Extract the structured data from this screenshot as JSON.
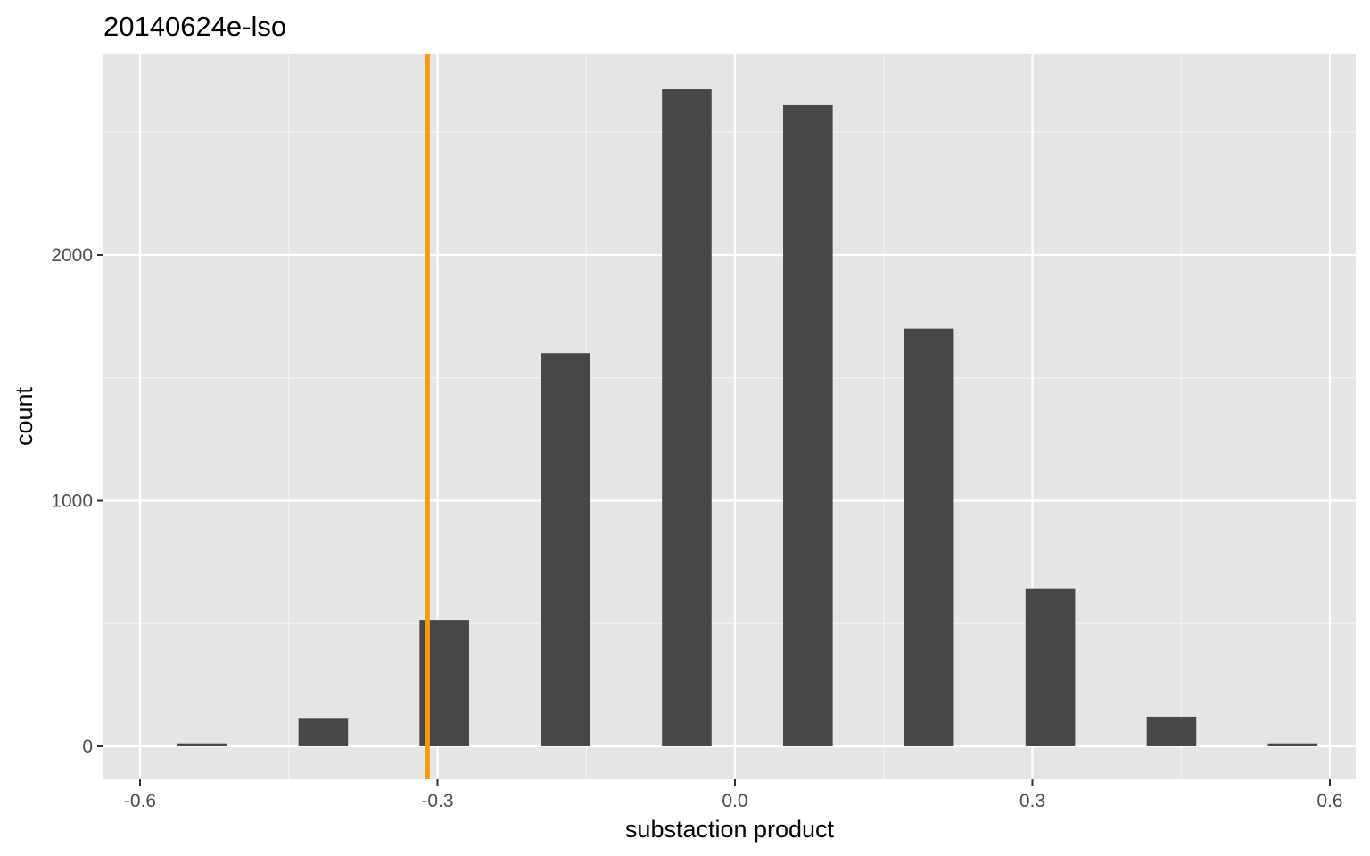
{
  "chart_data": {
    "type": "bar",
    "title": "20140624e-lso",
    "xlabel": "substaction product",
    "ylabel": "count",
    "xlim": [
      -0.6,
      0.6
    ],
    "ylim": [
      0,
      2700
    ],
    "x_ticks": [
      -0.6,
      -0.3,
      0.0,
      0.3,
      0.6
    ],
    "x_tick_labels": [
      "-0.6",
      "-0.3",
      "0.0",
      "0.3",
      "0.6"
    ],
    "y_ticks": [
      0,
      1000,
      2000
    ],
    "y_tick_labels": [
      "0",
      "1000",
      "2000"
    ],
    "bin_width": 0.05,
    "x": [
      -0.5375,
      -0.4152,
      -0.2931,
      -0.1708,
      -0.0486,
      0.0736,
      0.1958,
      0.3181,
      0.4403,
      0.5625
    ],
    "values": [
      12,
      115,
      515,
      1600,
      2675,
      2610,
      1700,
      640,
      120,
      12
    ],
    "reference_line": {
      "x": -0.31,
      "color": "#ff9900"
    },
    "grid": true,
    "legend": "none",
    "colors": {
      "panel_background": "#e5e5e5",
      "grid_major": "#ffffff",
      "grid_minor": "#f2f2f2",
      "bar_fill": "#474747",
      "tick_color": "#333333"
    }
  }
}
